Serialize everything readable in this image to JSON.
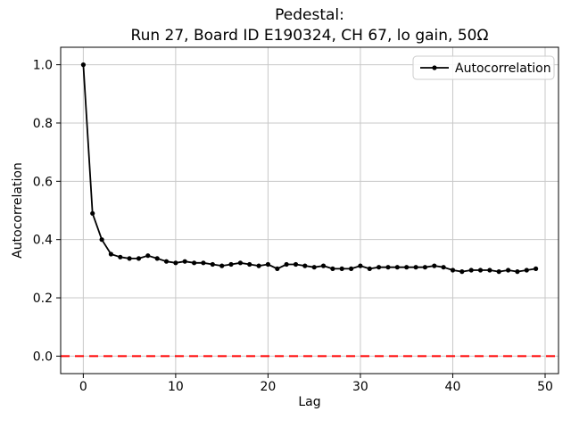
{
  "figure": {
    "title_line1": "Pedestal:",
    "title_line2": "Run 27, Board ID E190324, CH 67, lo gain, 50Ω"
  },
  "chart_data": {
    "type": "line",
    "title": "Pedestal:\nRun 27, Board ID E190324, CH 67, lo gain, 50Ω",
    "xlabel": "Lag",
    "ylabel": "Autocorrelation",
    "grid": true,
    "legend": {
      "position": "upper right",
      "entries": [
        {
          "label": "Autocorrelation",
          "color": "#000000",
          "linestyle": "solid",
          "marker": "circle"
        }
      ]
    },
    "xlim": [
      -2.45,
      51.45
    ],
    "ylim": [
      -0.06,
      1.06
    ],
    "xticks": [
      0,
      10,
      20,
      30,
      40,
      50
    ],
    "yticks": [
      0.0,
      0.2,
      0.4,
      0.6,
      0.8,
      1.0
    ],
    "series": [
      {
        "name": "Autocorrelation",
        "color": "#000000",
        "marker": "circle",
        "x": [
          0,
          1,
          2,
          3,
          4,
          5,
          6,
          7,
          8,
          9,
          10,
          11,
          12,
          13,
          14,
          15,
          16,
          17,
          18,
          19,
          20,
          21,
          22,
          23,
          24,
          25,
          26,
          27,
          28,
          29,
          30,
          31,
          32,
          33,
          34,
          35,
          36,
          37,
          38,
          39,
          40,
          41,
          42,
          43,
          44,
          45,
          46,
          47,
          48,
          49
        ],
        "y": [
          1.0,
          0.49,
          0.4,
          0.35,
          0.34,
          0.335,
          0.335,
          0.345,
          0.335,
          0.325,
          0.32,
          0.325,
          0.32,
          0.32,
          0.315,
          0.31,
          0.315,
          0.32,
          0.315,
          0.31,
          0.315,
          0.3,
          0.315,
          0.315,
          0.31,
          0.305,
          0.31,
          0.3,
          0.3,
          0.3,
          0.31,
          0.3,
          0.305,
          0.305,
          0.305,
          0.305,
          0.305,
          0.305,
          0.31,
          0.305,
          0.295,
          0.29,
          0.295,
          0.295,
          0.295,
          0.29,
          0.295,
          0.29,
          0.295,
          0.3
        ]
      }
    ],
    "reference_lines": [
      {
        "axis": "y",
        "value": 0.0,
        "color": "#ff0000",
        "linestyle": "dashed"
      }
    ]
  },
  "colors": {
    "background": "#ffffff",
    "grid": "#c8c8c8",
    "spine": "#000000",
    "series": "#000000",
    "zero_line": "#ff0000",
    "legend_border": "#cccccc",
    "text": "#000000"
  }
}
